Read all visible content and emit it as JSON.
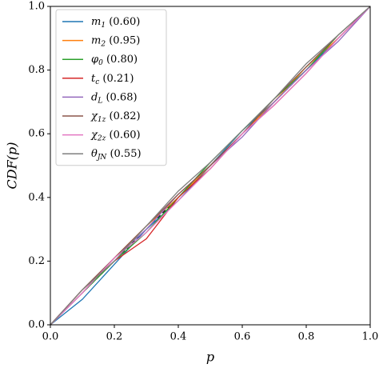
{
  "chart_data": {
    "type": "line",
    "xlabel": "p",
    "ylabel": "CDF(p)",
    "x": [
      0,
      0.1,
      0.2,
      0.3,
      0.4,
      0.5,
      0.6,
      0.7,
      0.8,
      0.9,
      1.0
    ],
    "series": [
      {
        "name": "m1 (0.60)",
        "color": "#1f77b4",
        "values": [
          0,
          0.08,
          0.19,
          0.3,
          0.39,
          0.5,
          0.61,
          0.7,
          0.8,
          0.9,
          1.0
        ]
      },
      {
        "name": "m2 (0.95)",
        "color": "#ff7f0e",
        "values": [
          0,
          0.1,
          0.21,
          0.31,
          0.4,
          0.5,
          0.6,
          0.7,
          0.81,
          0.9,
          1.0
        ]
      },
      {
        "name": "φ0 (0.80)",
        "color": "#2ca02c",
        "values": [
          0,
          0.1,
          0.2,
          0.29,
          0.4,
          0.51,
          0.61,
          0.71,
          0.8,
          0.91,
          1.0
        ]
      },
      {
        "name": "tc (0.21)",
        "color": "#d62728",
        "values": [
          0,
          0.11,
          0.2,
          0.27,
          0.4,
          0.49,
          0.6,
          0.69,
          0.79,
          0.9,
          1.0
        ]
      },
      {
        "name": "dL (0.68)",
        "color": "#9467bd",
        "values": [
          0,
          0.1,
          0.21,
          0.3,
          0.41,
          0.5,
          0.59,
          0.7,
          0.8,
          0.89,
          1.0
        ]
      },
      {
        "name": "χ1z (0.82)",
        "color": "#8c564b",
        "values": [
          0,
          0.11,
          0.21,
          0.31,
          0.41,
          0.5,
          0.6,
          0.71,
          0.81,
          0.91,
          1.0
        ]
      },
      {
        "name": "χ2z (0.60)",
        "color": "#e377c2",
        "values": [
          0,
          0.1,
          0.21,
          0.29,
          0.39,
          0.49,
          0.6,
          0.69,
          0.79,
          0.9,
          1.0
        ]
      },
      {
        "name": "θJN (0.55)",
        "color": "#7f7f7f",
        "values": [
          0,
          0.11,
          0.2,
          0.31,
          0.42,
          0.51,
          0.61,
          0.71,
          0.82,
          0.91,
          1.0
        ]
      }
    ],
    "xlim": [
      0,
      1
    ],
    "ylim": [
      0,
      1
    ],
    "xticks": [
      {
        "value": 0,
        "label": "0.0"
      },
      0.2,
      0.4,
      0.6,
      0.8,
      {
        "value": 1,
        "label": "1.0"
      }
    ],
    "yticks": [
      {
        "value": 0,
        "label": "0.0"
      },
      0.2,
      0.4,
      0.6,
      0.8,
      {
        "value": 1,
        "label": "1.0"
      }
    ],
    "legend": "upper left"
  }
}
